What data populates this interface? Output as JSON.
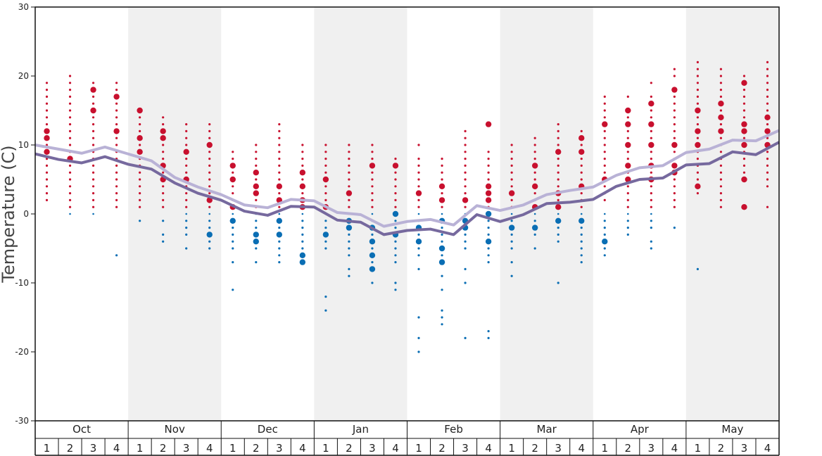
{
  "chart_data": {
    "type": "scatter",
    "title": "",
    "xlabel": "",
    "ylabel": "Temperature (C)",
    "ylim": [
      -30,
      30
    ],
    "yticks": [
      30,
      20,
      10,
      0,
      -10,
      -20,
      -30
    ],
    "months": [
      "Oct",
      "Nov",
      "Dec",
      "Jan",
      "Feb",
      "Mar",
      "Apr",
      "May"
    ],
    "weeks": [
      "1",
      "2",
      "3",
      "4"
    ],
    "grid": false,
    "shaded_months": [
      "Nov",
      "Jan",
      "Mar",
      "May"
    ],
    "colors": {
      "warm": "#c8102e",
      "cold": "#0a6eb4",
      "high_line": "#b9b2d6",
      "low_line": "#76699e",
      "shade": "#f0f0f0"
    },
    "series": [
      {
        "kind": "line",
        "role": "average high",
        "values": [
          10,
          9.4,
          8.8,
          9.7,
          8.7,
          7.7,
          5.3,
          3.9,
          2.8,
          1.3,
          0.9,
          2.1,
          1.9,
          0.2,
          -0.1,
          -1.8,
          -1.1,
          -0.8,
          -1.6,
          1.2,
          0.5,
          1.3,
          2.8,
          3.4,
          3.9,
          5.6,
          6.7,
          7.0,
          8.9,
          9.4,
          10.7,
          10.6,
          12.1
        ]
      },
      {
        "kind": "line",
        "role": "average low",
        "values": [
          8.7,
          7.9,
          7.4,
          8.3,
          7.2,
          6.5,
          4.5,
          3.0,
          2.0,
          0.4,
          -0.2,
          1.1,
          1.0,
          -0.9,
          -1.2,
          -3.0,
          -2.4,
          -2.2,
          -3.0,
          -0.1,
          -1.1,
          -0.1,
          1.5,
          1.7,
          2.1,
          4.0,
          5.0,
          5.2,
          7.1,
          7.3,
          9.0,
          8.6,
          10.4
        ]
      }
    ],
    "observations": [
      {
        "month": "Oct",
        "week": 1,
        "temps": [
          19,
          18,
          17,
          16,
          15,
          14,
          13,
          12,
          11,
          10,
          9,
          8,
          7,
          6,
          5,
          4,
          3,
          2
        ],
        "big": [
          12,
          11,
          9
        ]
      },
      {
        "month": "Oct",
        "week": 2,
        "temps": [
          20,
          19,
          18,
          17,
          16,
          15,
          14,
          13,
          12,
          11,
          10,
          9,
          8,
          7,
          6,
          5,
          4,
          3,
          2,
          1,
          0
        ],
        "big": [
          8
        ]
      },
      {
        "month": "Oct",
        "week": 3,
        "temps": [
          19,
          18,
          17,
          16,
          15,
          14,
          13,
          12,
          11,
          10,
          9,
          8,
          7,
          6,
          5,
          4,
          3,
          2,
          1,
          0
        ],
        "big": [
          18,
          15
        ]
      },
      {
        "month": "Oct",
        "week": 4,
        "temps": [
          19,
          18,
          17,
          16,
          15,
          14,
          13,
          12,
          11,
          10,
          9,
          8,
          7,
          6,
          5,
          4,
          3,
          2,
          1,
          -6
        ],
        "big": [
          17,
          12
        ]
      },
      {
        "month": "Nov",
        "week": 1,
        "temps": [
          15,
          14,
          13,
          12,
          11,
          10,
          9,
          8,
          7,
          6,
          5,
          4,
          3,
          2,
          1,
          -1
        ],
        "big": [
          15,
          11,
          9
        ]
      },
      {
        "month": "Nov",
        "week": 2,
        "temps": [
          14,
          13,
          12,
          11,
          10,
          9,
          8,
          7,
          6,
          5,
          4,
          3,
          2,
          1,
          -1,
          -3,
          -4
        ],
        "big": [
          12,
          11,
          7,
          5
        ]
      },
      {
        "month": "Nov",
        "week": 3,
        "temps": [
          13,
          12,
          11,
          10,
          9,
          8,
          7,
          6,
          5,
          4,
          3,
          2,
          1,
          0,
          -1,
          -2,
          -3,
          -5
        ],
        "big": [
          9,
          5
        ]
      },
      {
        "month": "Nov",
        "week": 4,
        "temps": [
          13,
          12,
          11,
          10,
          9,
          8,
          7,
          6,
          5,
          4,
          3,
          2,
          1,
          0,
          -1,
          -2,
          -3,
          -4,
          -5
        ],
        "big": [
          10,
          2,
          -3
        ]
      },
      {
        "month": "Dec",
        "week": 1,
        "temps": [
          9,
          8,
          7,
          6,
          5,
          4,
          3,
          2,
          1,
          0,
          -1,
          -2,
          -3,
          -4,
          -5,
          -7,
          -11
        ],
        "big": [
          7,
          5,
          1,
          -1
        ]
      },
      {
        "month": "Dec",
        "week": 2,
        "temps": [
          10,
          9,
          8,
          7,
          6,
          5,
          4,
          3,
          2,
          1,
          0,
          -1,
          -2,
          -3,
          -4,
          -5,
          -7
        ],
        "big": [
          6,
          4,
          3,
          -3,
          -4
        ]
      },
      {
        "month": "Dec",
        "week": 3,
        "temps": [
          13,
          12,
          11,
          10,
          9,
          8,
          7,
          6,
          5,
          4,
          3,
          2,
          1,
          0,
          -1,
          -2,
          -3,
          -4,
          -5,
          -6,
          -7
        ],
        "big": [
          4,
          2,
          -1,
          -3
        ]
      },
      {
        "month": "Dec",
        "week": 4,
        "temps": [
          10,
          9,
          8,
          7,
          6,
          5,
          4,
          3,
          2,
          1,
          0,
          -1,
          -2,
          -3,
          -4,
          -5,
          -6,
          -7
        ],
        "big": [
          6,
          4,
          2,
          1,
          -6,
          -7
        ]
      },
      {
        "month": "Jan",
        "week": 1,
        "temps": [
          10,
          9,
          8,
          7,
          6,
          5,
          4,
          3,
          2,
          1,
          0,
          -1,
          -2,
          -3,
          -4,
          -5,
          -12,
          -14
        ],
        "big": [
          5,
          1,
          -3
        ]
      },
      {
        "month": "Jan",
        "week": 2,
        "temps": [
          10,
          9,
          8,
          7,
          6,
          5,
          4,
          3,
          2,
          1,
          0,
          -1,
          -2,
          -3,
          -4,
          -5,
          -6,
          -8,
          -9
        ],
        "big": [
          3,
          -1,
          -2
        ]
      },
      {
        "month": "Jan",
        "week": 3,
        "temps": [
          10,
          9,
          8,
          7,
          6,
          5,
          4,
          3,
          2,
          1,
          0,
          -1,
          -2,
          -3,
          -4,
          -5,
          -6,
          -7,
          -8,
          -10
        ],
        "big": [
          7,
          -2,
          -4,
          -6,
          -8
        ]
      },
      {
        "month": "Jan",
        "week": 4,
        "temps": [
          8,
          7,
          6,
          5,
          4,
          3,
          2,
          1,
          0,
          -1,
          -2,
          -3,
          -4,
          -5,
          -6,
          -7,
          -10,
          -11
        ],
        "big": [
          7,
          0,
          -3
        ]
      },
      {
        "month": "Feb",
        "week": 1,
        "temps": [
          10,
          8,
          7,
          6,
          5,
          4,
          3,
          2,
          1,
          0,
          -1,
          -2,
          -3,
          -4,
          -5,
          -6,
          -8,
          -15,
          -18,
          -20
        ],
        "big": [
          3,
          -2,
          -4
        ]
      },
      {
        "month": "Feb",
        "week": 2,
        "temps": [
          8,
          7,
          6,
          5,
          4,
          3,
          2,
          1,
          0,
          -1,
          -2,
          -3,
          -4,
          -5,
          -6,
          -7,
          -9,
          -11,
          -14,
          -15,
          -16
        ],
        "big": [
          4,
          2,
          -1,
          -5,
          -7
        ]
      },
      {
        "month": "Feb",
        "week": 3,
        "temps": [
          12,
          11,
          10,
          9,
          8,
          7,
          6,
          5,
          4,
          3,
          2,
          1,
          0,
          -1,
          -2,
          -3,
          -4,
          -5,
          -8,
          -10,
          -18
        ],
        "big": [
          2,
          -1,
          -2
        ]
      },
      {
        "month": "Feb",
        "week": 4,
        "temps": [
          13,
          9,
          8,
          7,
          6,
          5,
          4,
          3,
          2,
          1,
          0,
          -1,
          -2,
          -3,
          -4,
          -5,
          -6,
          -7,
          -17,
          -18
        ],
        "big": [
          13,
          4,
          3,
          2,
          0,
          -4
        ]
      },
      {
        "month": "Mar",
        "week": 1,
        "temps": [
          10,
          9,
          8,
          7,
          6,
          5,
          4,
          3,
          2,
          1,
          0,
          -1,
          -2,
          -3,
          -4,
          -5,
          -7,
          -9
        ],
        "big": [
          3,
          -2
        ]
      },
      {
        "month": "Mar",
        "week": 2,
        "temps": [
          11,
          10,
          9,
          8,
          7,
          6,
          5,
          4,
          3,
          2,
          1,
          0,
          -1,
          -2,
          -3,
          -5
        ],
        "big": [
          7,
          4,
          1,
          -2
        ]
      },
      {
        "month": "Mar",
        "week": 3,
        "temps": [
          13,
          12,
          11,
          10,
          9,
          8,
          7,
          6,
          5,
          4,
          3,
          2,
          1,
          0,
          -1,
          -2,
          -3,
          -4,
          -10
        ],
        "big": [
          9,
          3,
          1,
          -1
        ]
      },
      {
        "month": "Mar",
        "week": 4,
        "temps": [
          12,
          11,
          10,
          9,
          8,
          7,
          6,
          5,
          4,
          3,
          2,
          1,
          0,
          -1,
          -2,
          -3,
          -4,
          -5,
          -6,
          -7
        ],
        "big": [
          11,
          9,
          4,
          -1
        ]
      },
      {
        "month": "Apr",
        "week": 1,
        "temps": [
          17,
          16,
          15,
          14,
          13,
          12,
          11,
          10,
          9,
          8,
          7,
          6,
          5,
          4,
          3,
          2,
          0,
          -1,
          -2,
          -3,
          -4,
          -5,
          -6
        ],
        "big": [
          13,
          5,
          -4
        ]
      },
      {
        "month": "Apr",
        "week": 2,
        "temps": [
          17,
          15,
          14,
          13,
          12,
          11,
          10,
          9,
          8,
          7,
          6,
          5,
          4,
          3,
          2,
          1,
          0,
          -1,
          -2,
          -3
        ],
        "big": [
          15,
          13,
          10,
          7,
          5
        ]
      },
      {
        "month": "Apr",
        "week": 3,
        "temps": [
          19,
          17,
          16,
          15,
          14,
          13,
          12,
          11,
          10,
          9,
          8,
          7,
          6,
          5,
          4,
          3,
          2,
          1,
          0,
          -1,
          -2,
          -4,
          -5
        ],
        "big": [
          16,
          13,
          10,
          7,
          5
        ]
      },
      {
        "month": "Apr",
        "week": 4,
        "temps": [
          21,
          20,
          18,
          17,
          16,
          15,
          14,
          13,
          12,
          11,
          10,
          9,
          8,
          7,
          6,
          5,
          4,
          3,
          2,
          1,
          -2
        ],
        "big": [
          18,
          10,
          7,
          6
        ]
      },
      {
        "month": "May",
        "week": 1,
        "temps": [
          22,
          21,
          20,
          19,
          18,
          17,
          16,
          15,
          14,
          13,
          12,
          11,
          10,
          9,
          8,
          7,
          6,
          5,
          4,
          3,
          -8
        ],
        "big": [
          15,
          12,
          10,
          4
        ]
      },
      {
        "month": "May",
        "week": 2,
        "temps": [
          21,
          20,
          19,
          18,
          17,
          16,
          15,
          14,
          13,
          12,
          11,
          10,
          9,
          8,
          7,
          6,
          5,
          4,
          3,
          2,
          1
        ],
        "big": [
          16,
          14,
          12
        ]
      },
      {
        "month": "May",
        "week": 3,
        "temps": [
          20,
          19,
          18,
          17,
          16,
          15,
          14,
          13,
          12,
          11,
          10,
          9,
          8,
          7,
          6,
          5,
          1
        ],
        "big": [
          19,
          13,
          12,
          10,
          5,
          1
        ]
      },
      {
        "month": "May",
        "week": 4,
        "temps": [
          22,
          21,
          20,
          19,
          18,
          17,
          16,
          15,
          14,
          13,
          12,
          11,
          10,
          9,
          8,
          7,
          6,
          5,
          4,
          1
        ],
        "big": [
          14,
          12,
          10
        ]
      }
    ]
  }
}
